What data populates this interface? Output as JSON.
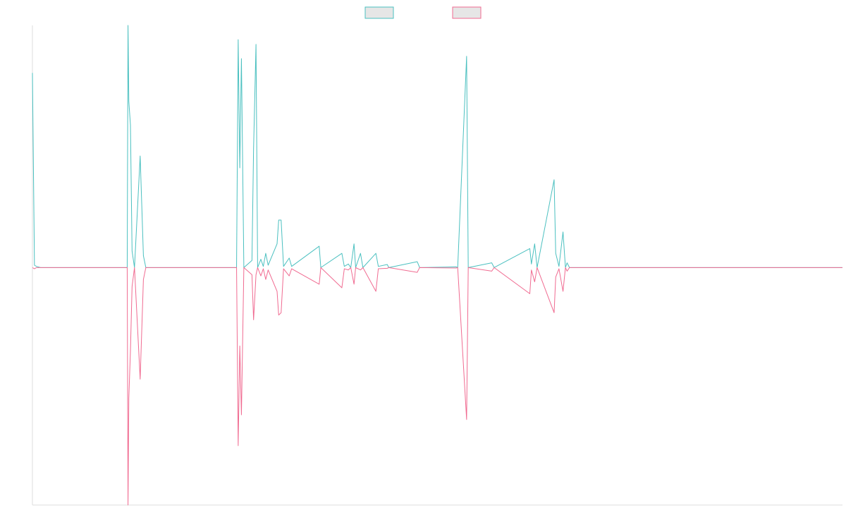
{
  "chart_data": {
    "type": "line",
    "title": "",
    "xlabel": "",
    "ylabel": "",
    "legend_position": "top-center",
    "grid": false,
    "xlim": [
      0,
      200
    ],
    "ylim": [
      -1,
      1.02
    ],
    "series": [
      {
        "color": "#4bc0c0",
        "legend_fill": "#e6e6e6",
        "points": [
          [
            0,
            0.82
          ],
          [
            0.5,
            0.01
          ],
          [
            1,
            0.005
          ],
          [
            2,
            0
          ],
          [
            23.4,
            0
          ],
          [
            23.6,
            1.02
          ],
          [
            23.8,
            0.7
          ],
          [
            24.2,
            0.6
          ],
          [
            24.6,
            0.07
          ],
          [
            25.2,
            0
          ],
          [
            26.6,
            0.47
          ],
          [
            27.4,
            0.05
          ],
          [
            28,
            0
          ],
          [
            50.4,
            0
          ],
          [
            50.8,
            0.96
          ],
          [
            51.2,
            0.42
          ],
          [
            51.6,
            0.88
          ],
          [
            52.2,
            0
          ],
          [
            54.2,
            0.03
          ],
          [
            54.6,
            0.5
          ],
          [
            55.2,
            0.94
          ],
          [
            55.6,
            0
          ],
          [
            56.4,
            0.035
          ],
          [
            57,
            0.005
          ],
          [
            57.6,
            0.06
          ],
          [
            58.2,
            0.01
          ],
          [
            60.4,
            0.1
          ],
          [
            60.8,
            0.2
          ],
          [
            61.4,
            0.2
          ],
          [
            62,
            0.005
          ],
          [
            63.4,
            0.04
          ],
          [
            64,
            0.005
          ],
          [
            70.8,
            0.09
          ],
          [
            71.2,
            0
          ],
          [
            76.4,
            0.06
          ],
          [
            77,
            0.005
          ],
          [
            78,
            0.015
          ],
          [
            78.6,
            0
          ],
          [
            79.4,
            0.1
          ],
          [
            79.8,
            0
          ],
          [
            81,
            0.06
          ],
          [
            81.6,
            0
          ],
          [
            84.8,
            0.06
          ],
          [
            85.4,
            0.005
          ],
          [
            87.6,
            0.013
          ],
          [
            88,
            0
          ],
          [
            95,
            0.025
          ],
          [
            95.6,
            0
          ],
          [
            104.6,
            0.003
          ],
          [
            105,
            0
          ],
          [
            107.2,
            0.89
          ],
          [
            107.6,
            0
          ],
          [
            113.4,
            0.02
          ],
          [
            114,
            0
          ],
          [
            122.8,
            0.08
          ],
          [
            123.2,
            0.015
          ],
          [
            124,
            0.1
          ],
          [
            124.6,
            0
          ],
          [
            128.8,
            0.37
          ],
          [
            129.2,
            0.06
          ],
          [
            130,
            0.005
          ],
          [
            131,
            0.15
          ],
          [
            131.6,
            0
          ],
          [
            132,
            0.02
          ],
          [
            132.6,
            0
          ],
          [
            200,
            0
          ]
        ]
      },
      {
        "color": "#f06b91",
        "legend_fill": "#e6e6e6",
        "points": [
          [
            0,
            -0.0
          ],
          [
            0.5,
            -0.005
          ],
          [
            1,
            0
          ],
          [
            2,
            0
          ],
          [
            23.4,
            0
          ],
          [
            23.6,
            -1.0
          ],
          [
            23.8,
            -0.55
          ],
          [
            24.2,
            -0.35
          ],
          [
            24.6,
            -0.08
          ],
          [
            25.2,
            0
          ],
          [
            26.6,
            -0.47
          ],
          [
            27.4,
            -0.05
          ],
          [
            28,
            0
          ],
          [
            50.4,
            0
          ],
          [
            50.8,
            -0.75
          ],
          [
            51.2,
            -0.33
          ],
          [
            51.6,
            -0.62
          ],
          [
            52.2,
            0
          ],
          [
            54.2,
            -0.03
          ],
          [
            54.6,
            -0.22
          ],
          [
            55.2,
            -0.03
          ],
          [
            55.6,
            0
          ],
          [
            56.4,
            -0.035
          ],
          [
            57,
            -0.005
          ],
          [
            57.6,
            -0.05
          ],
          [
            58.2,
            -0.01
          ],
          [
            60.4,
            -0.1
          ],
          [
            60.8,
            -0.2
          ],
          [
            61.4,
            -0.19
          ],
          [
            62,
            -0.005
          ],
          [
            63.4,
            -0.035
          ],
          [
            64,
            -0.005
          ],
          [
            70.8,
            -0.07
          ],
          [
            71.2,
            0
          ],
          [
            76.4,
            -0.085
          ],
          [
            77,
            -0.005
          ],
          [
            78,
            -0.01
          ],
          [
            78.6,
            0
          ],
          [
            79.4,
            -0.07
          ],
          [
            79.8,
            0
          ],
          [
            81,
            -0.01
          ],
          [
            81.6,
            0
          ],
          [
            84.8,
            -0.1
          ],
          [
            85.4,
            -0.005
          ],
          [
            87.6,
            -0.003
          ],
          [
            88,
            0
          ],
          [
            95,
            -0.02
          ],
          [
            95.6,
            0
          ],
          [
            104.6,
            -0.002
          ],
          [
            105,
            0
          ],
          [
            107.2,
            -0.64
          ],
          [
            107.6,
            0
          ],
          [
            113.4,
            -0.015
          ],
          [
            114,
            0
          ],
          [
            122.8,
            -0.11
          ],
          [
            123.2,
            -0.01
          ],
          [
            124,
            -0.06
          ],
          [
            124.6,
            0
          ],
          [
            128.8,
            -0.19
          ],
          [
            129.2,
            -0.04
          ],
          [
            130,
            -0.005
          ],
          [
            131,
            -0.1
          ],
          [
            131.6,
            0
          ],
          [
            132,
            -0.015
          ],
          [
            132.6,
            0
          ],
          [
            200,
            0
          ]
        ]
      }
    ]
  }
}
